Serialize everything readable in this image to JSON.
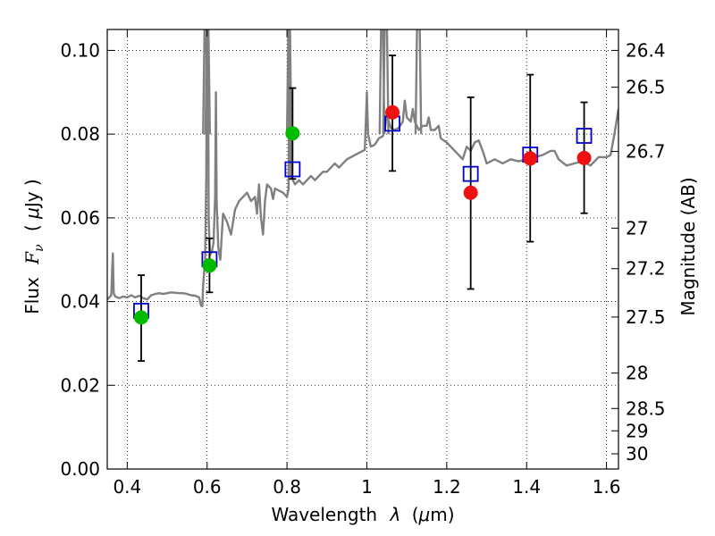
{
  "chart_data": {
    "type": "scatter",
    "xlabel": "Wavelength  λ (μm)",
    "ylabel": "Flux  F_ν  ( μJy )",
    "ylabel_parts": [
      "Flux",
      "F",
      "ν",
      "( ",
      "μ",
      "Jy )"
    ],
    "xlabel_parts": [
      "Wavelength",
      "λ",
      "(",
      "μ",
      "m)"
    ],
    "y2label": "Magnitude (AB)",
    "xlim": [
      0.35,
      1.63
    ],
    "ylim": [
      0.0,
      0.105
    ],
    "xticks": [
      0.4,
      0.6,
      0.8,
      1.0,
      1.2,
      1.4,
      1.6
    ],
    "xtick_labels": [
      "0.4",
      "0.6",
      "0.8",
      "1",
      "1.2",
      "1.4",
      "1.6"
    ],
    "yticks": [
      0.0,
      0.02,
      0.04,
      0.06,
      0.08,
      0.1
    ],
    "ytick_labels": [
      "0.00",
      "0.02",
      "0.04",
      "0.06",
      "0.08",
      "0.10"
    ],
    "y2ticks": [
      {
        "label": "26.4",
        "mag": 26.4
      },
      {
        "label": "26.5",
        "mag": 26.5
      },
      {
        "label": "26.7",
        "mag": 26.7
      },
      {
        "label": "27",
        "mag": 27.0
      },
      {
        "label": "27.2",
        "mag": 27.2
      },
      {
        "label": "27.5",
        "mag": 27.5
      },
      {
        "label": "28",
        "mag": 28.0
      },
      {
        "label": "28.5",
        "mag": 28.5
      },
      {
        "label": "29",
        "mag": 29.0
      },
      {
        "label": "30",
        "mag": 30.0
      }
    ],
    "grid": true,
    "colors": {
      "template": "#808080",
      "model": "#0000cc",
      "green": "#00bb00",
      "red": "#ee1111",
      "errorbar": "#000000"
    },
    "model_points": [
      {
        "x": 0.435,
        "y": 0.0378
      },
      {
        "x": 0.606,
        "y": 0.0501
      },
      {
        "x": 0.814,
        "y": 0.0716
      },
      {
        "x": 1.064,
        "y": 0.0825
      },
      {
        "x": 1.26,
        "y": 0.0705
      },
      {
        "x": 1.409,
        "y": 0.0751
      },
      {
        "x": 1.544,
        "y": 0.0796
      }
    ],
    "observed_green": [
      {
        "x": 0.435,
        "y": 0.0362,
        "ylo": 0.0258,
        "yhi": 0.0463
      },
      {
        "x": 0.606,
        "y": 0.0486,
        "ylo": 0.0422,
        "yhi": 0.0551
      },
      {
        "x": 0.814,
        "y": 0.0802,
        "ylo": 0.0693,
        "yhi": 0.091
      }
    ],
    "observed_red": [
      {
        "x": 1.064,
        "y": 0.0852,
        "ylo": 0.0712,
        "yhi": 0.0988
      },
      {
        "x": 1.26,
        "y": 0.066,
        "ylo": 0.043,
        "yhi": 0.0888
      },
      {
        "x": 1.409,
        "y": 0.0742,
        "ylo": 0.0543,
        "yhi": 0.0942
      },
      {
        "x": 1.544,
        "y": 0.0743,
        "ylo": 0.0611,
        "yhi": 0.0876
      }
    ],
    "template_spectrum": [
      [
        0.35,
        0.0405
      ],
      [
        0.355,
        0.041
      ],
      [
        0.36,
        0.0415
      ],
      [
        0.362,
        0.047
      ],
      [
        0.364,
        0.0515
      ],
      [
        0.366,
        0.042
      ],
      [
        0.37,
        0.0412
      ],
      [
        0.38,
        0.0408
      ],
      [
        0.39,
        0.0412
      ],
      [
        0.4,
        0.041
      ],
      [
        0.41,
        0.0415
      ],
      [
        0.42,
        0.041
      ],
      [
        0.43,
        0.0414
      ],
      [
        0.44,
        0.0408
      ],
      [
        0.45,
        0.0405
      ],
      [
        0.46,
        0.0415
      ],
      [
        0.47,
        0.0418
      ],
      [
        0.48,
        0.042
      ],
      [
        0.49,
        0.0418
      ],
      [
        0.5,
        0.042
      ],
      [
        0.51,
        0.0422
      ],
      [
        0.52,
        0.0421
      ],
      [
        0.53,
        0.042
      ],
      [
        0.54,
        0.042
      ],
      [
        0.55,
        0.0418
      ],
      [
        0.56,
        0.0415
      ],
      [
        0.57,
        0.0414
      ],
      [
        0.58,
        0.041
      ],
      [
        0.585,
        0.039
      ],
      [
        0.588,
        0.0389
      ],
      [
        0.59,
        0.044
      ],
      [
        0.595,
        0.05
      ],
      [
        0.598,
        0.07
      ],
      [
        0.6,
        0.11
      ],
      [
        0.602,
        0.11
      ],
      [
        0.604,
        0.06
      ],
      [
        0.607,
        0.051
      ],
      [
        0.612,
        0.052
      ],
      [
        0.616,
        0.054
      ],
      [
        0.62,
        0.065
      ],
      [
        0.622,
        0.09
      ],
      [
        0.624,
        0.064
      ],
      [
        0.628,
        0.053
      ],
      [
        0.633,
        0.05
      ],
      [
        0.64,
        0.061
      ],
      [
        0.65,
        0.059
      ],
      [
        0.66,
        0.056
      ],
      [
        0.67,
        0.062
      ],
      [
        0.68,
        0.064
      ],
      [
        0.69,
        0.065
      ],
      [
        0.7,
        0.066
      ],
      [
        0.71,
        0.064
      ],
      [
        0.72,
        0.065
      ],
      [
        0.725,
        0.061
      ],
      [
        0.73,
        0.068
      ],
      [
        0.735,
        0.06
      ],
      [
        0.74,
        0.056
      ],
      [
        0.745,
        0.064
      ],
      [
        0.75,
        0.068
      ],
      [
        0.76,
        0.067
      ],
      [
        0.765,
        0.0645
      ],
      [
        0.77,
        0.067
      ],
      [
        0.78,
        0.0665
      ],
      [
        0.79,
        0.066
      ],
      [
        0.8,
        0.065
      ],
      [
        0.804,
        0.067
      ],
      [
        0.807,
        0.11
      ],
      [
        0.81,
        0.07
      ],
      [
        0.815,
        0.069
      ],
      [
        0.82,
        0.068
      ],
      [
        0.83,
        0.069
      ],
      [
        0.84,
        0.068
      ],
      [
        0.85,
        0.069
      ],
      [
        0.86,
        0.07
      ],
      [
        0.87,
        0.069
      ],
      [
        0.88,
        0.07
      ],
      [
        0.89,
        0.071
      ],
      [
        0.9,
        0.071
      ],
      [
        0.91,
        0.072
      ],
      [
        0.92,
        0.073
      ],
      [
        0.93,
        0.072
      ],
      [
        0.94,
        0.073
      ],
      [
        0.95,
        0.074
      ],
      [
        0.96,
        0.0745
      ],
      [
        0.97,
        0.075
      ],
      [
        0.98,
        0.0755
      ],
      [
        0.99,
        0.076
      ],
      [
        0.995,
        0.0762
      ],
      [
        1.0,
        0.09
      ],
      [
        1.003,
        0.08
      ],
      [
        1.01,
        0.077
      ],
      [
        1.02,
        0.0775
      ],
      [
        1.03,
        0.079
      ],
      [
        1.04,
        0.0795
      ],
      [
        1.045,
        0.081
      ],
      [
        1.05,
        0.085
      ],
      [
        1.055,
        0.083
      ],
      [
        1.06,
        0.0815
      ],
      [
        1.07,
        0.081
      ],
      [
        1.08,
        0.0815
      ],
      [
        1.09,
        0.083
      ],
      [
        1.095,
        0.088
      ],
      [
        1.1,
        0.084
      ],
      [
        1.11,
        0.083
      ],
      [
        1.115,
        0.086
      ],
      [
        1.12,
        0.083
      ],
      [
        1.13,
        0.081
      ],
      [
        1.14,
        0.082
      ],
      [
        1.15,
        0.082
      ],
      [
        1.155,
        0.084
      ],
      [
        1.16,
        0.081
      ],
      [
        1.17,
        0.081
      ],
      [
        1.18,
        0.082
      ],
      [
        1.185,
        0.079
      ],
      [
        1.2,
        0.078
      ],
      [
        1.21,
        0.077
      ],
      [
        1.22,
        0.076
      ],
      [
        1.23,
        0.075
      ],
      [
        1.24,
        0.074
      ],
      [
        1.25,
        0.077
      ],
      [
        1.26,
        0.076
      ],
      [
        1.27,
        0.078
      ],
      [
        1.28,
        0.0785
      ],
      [
        1.29,
        0.076
      ],
      [
        1.3,
        0.073
      ],
      [
        1.32,
        0.074
      ],
      [
        1.34,
        0.073
      ],
      [
        1.36,
        0.074
      ],
      [
        1.38,
        0.0735
      ],
      [
        1.4,
        0.074
      ],
      [
        1.41,
        0.076
      ],
      [
        1.42,
        0.0745
      ],
      [
        1.44,
        0.075
      ],
      [
        1.46,
        0.076
      ],
      [
        1.47,
        0.076
      ],
      [
        1.48,
        0.074
      ],
      [
        1.5,
        0.0725
      ],
      [
        1.52,
        0.073
      ],
      [
        1.54,
        0.0735
      ],
      [
        1.56,
        0.0725
      ],
      [
        1.58,
        0.0745
      ],
      [
        1.59,
        0.0745
      ],
      [
        1.6,
        0.0745
      ],
      [
        1.61,
        0.075
      ],
      [
        1.62,
        0.08
      ],
      [
        1.63,
        0.086
      ]
    ],
    "template_spikes": [
      {
        "x0": 0.594,
        "x1": 0.597,
        "y": 0.108
      },
      {
        "x0": 0.6,
        "x1": 0.603,
        "y": 0.108
      },
      {
        "x0": 0.804,
        "x1": 0.807,
        "y": 0.108
      },
      {
        "x0": 1.036,
        "x1": 1.04,
        "y": 0.108
      },
      {
        "x0": 1.045,
        "x1": 1.05,
        "y": 0.108
      },
      {
        "x0": 1.126,
        "x1": 1.132,
        "y": 0.108
      }
    ]
  }
}
